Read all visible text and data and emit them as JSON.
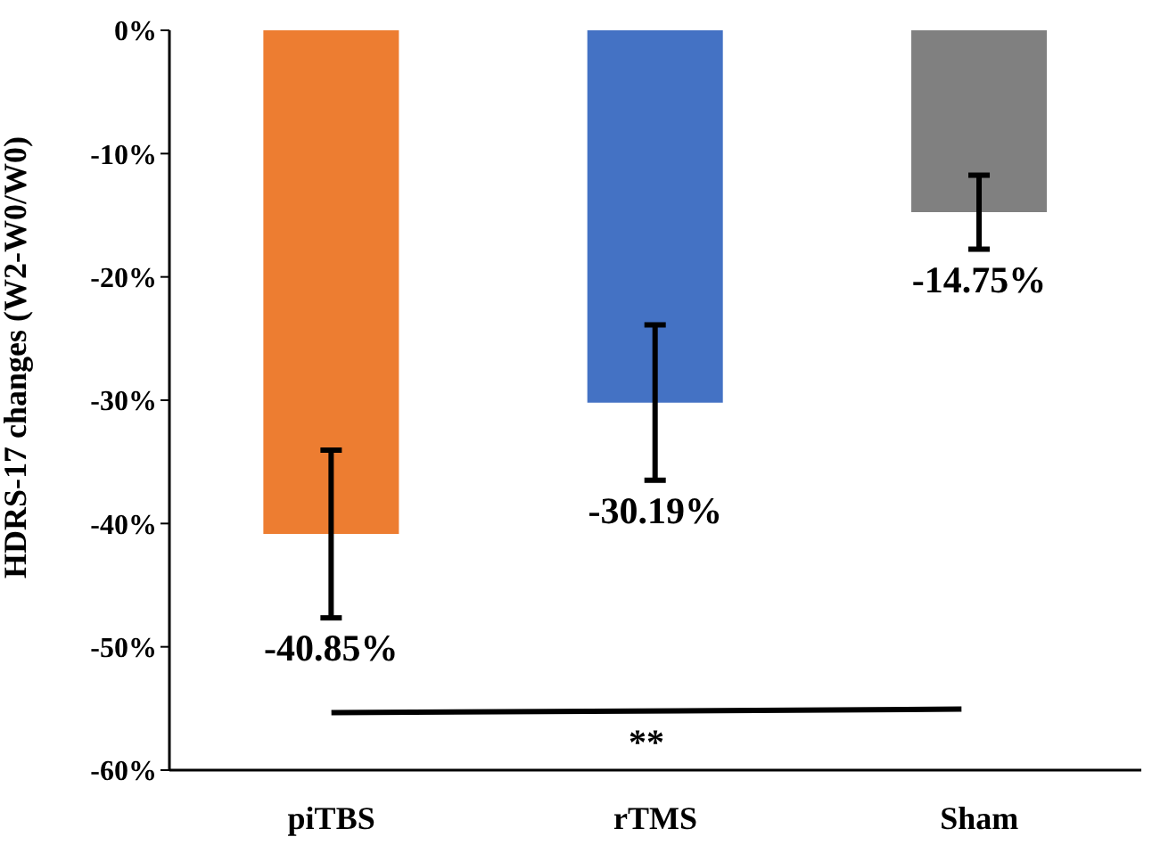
{
  "chart_data": {
    "type": "bar",
    "ylabel": "HDRS-17 changes (W2-W0/W0)",
    "categories": [
      "piTBS",
      "rTMS",
      "Sham"
    ],
    "values": [
      -40.85,
      -30.19,
      -14.75
    ],
    "colors": [
      "#ed7d31",
      "#4472c4",
      "#808080"
    ],
    "errors": [
      6.8,
      6.3,
      3.0
    ],
    "value_labels": [
      "-40.85%",
      "-30.19%",
      "-14.75%"
    ],
    "ylim": [
      -60,
      0
    ],
    "yticks": [
      {
        "value": -60,
        "label": "-60%"
      },
      {
        "value": -50,
        "label": "-50%"
      },
      {
        "value": -40,
        "label": "-40%"
      },
      {
        "value": -30,
        "label": "-30%"
      },
      {
        "value": -20,
        "label": "-20%"
      },
      {
        "value": -10,
        "label": "-10%"
      },
      {
        "value": 0,
        "label": "0%"
      }
    ],
    "annotations": [
      "**"
    ],
    "grid": false,
    "legend": false
  }
}
